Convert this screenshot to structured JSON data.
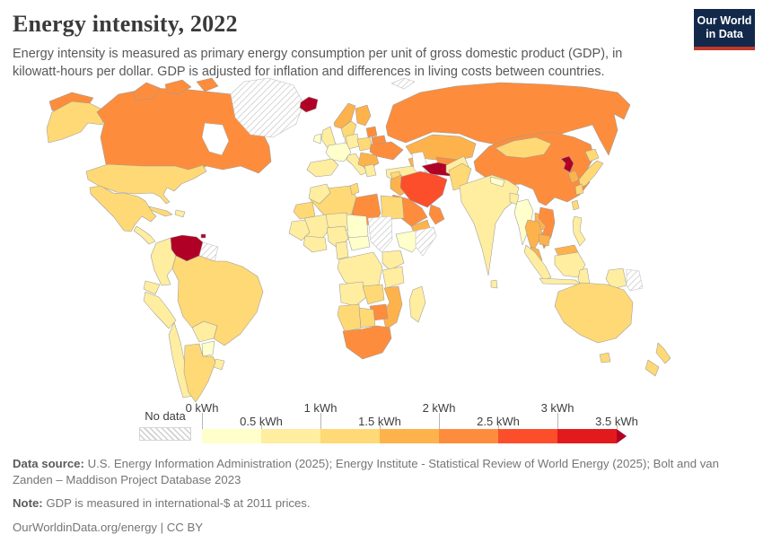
{
  "header": {
    "title": "Energy intensity, 2022",
    "subtitle": "Energy intensity is measured as primary energy consumption per unit of gross domestic product (GDP), in kilowatt-hours per dollar. GDP is adjusted for inflation and differences in living costs between countries.",
    "logo": {
      "line1": "Our World",
      "line2": "in Data",
      "bg_color": "#12294B",
      "accent_color": "#C0392B"
    }
  },
  "legend": {
    "no_data_label": "No data",
    "ticks_top": [
      "0 kWh",
      "1 kWh",
      "2 kWh",
      "3 kWh"
    ],
    "ticks_bottom": [
      "0.5 kWh",
      "1.5 kWh",
      "2.5 kWh",
      "3.5 kWh"
    ]
  },
  "chart_data": {
    "type": "choropleth",
    "title": "Energy intensity",
    "year": 2022,
    "unit": "kilowatt-hours per international-$ of GDP",
    "legend_bins": [
      {
        "label": "0–0.5 kWh",
        "color": "#FFFFCC"
      },
      {
        "label": "0.5–1 kWh",
        "color": "#FFEDA0"
      },
      {
        "label": "1–1.5 kWh",
        "color": "#FED976"
      },
      {
        "label": "1.5–2 kWh",
        "color": "#FEB24C"
      },
      {
        "label": "2–2.5 kWh",
        "color": "#FD8D3C"
      },
      {
        "label": "2.5–3 kWh",
        "color": "#FC4E2A"
      },
      {
        "label": "3–3.5 kWh",
        "color": "#E31A1C"
      },
      {
        "label": "3.5+ kWh",
        "color": "#B10026"
      }
    ],
    "no_data": {
      "label": "No data",
      "fill": "hatched"
    },
    "countries": {
      "united-states": 2,
      "canada": 4,
      "greenland": "no_data",
      "iceland": 7,
      "mexico": 2,
      "cuba": 2,
      "haiti-dominican-republic": 1,
      "trinidad-and-tobago": 7,
      "central-america": 1,
      "venezuela": 7,
      "guyana-suriname": "no_data",
      "colombia": 1,
      "ecuador": 1,
      "peru": 1,
      "brazil": 2,
      "bolivia": 1,
      "paraguay": 0,
      "uruguay": 1,
      "chile": 1,
      "argentina": 2,
      "united-kingdom": 1,
      "ireland": 0,
      "norway": 3,
      "sweden": 2,
      "finland": 3,
      "denmark": 1,
      "estonia": 4,
      "germany": 1,
      "france": 0,
      "spain": 1,
      "italy": 1,
      "poland": 2,
      "belarus": 4,
      "ukraine": 4,
      "balkans": 3,
      "greece": 1,
      "turkey": 1,
      "russia": 4,
      "caucasus": 3,
      "kazakhstan": 3,
      "uzbekistan": 4,
      "turkmenistan": 7,
      "iran": 5,
      "iraq": 3,
      "syria": 2,
      "saudi-arabia": 4,
      "yemen": 3,
      "oman": 4,
      "afghanistan": 1,
      "pakistan": 2,
      "india": 1,
      "sri-lanka": 1,
      "nepal": 0,
      "bangladesh": 1,
      "myanmar": 0,
      "thailand": 3,
      "laos": 3,
      "vietnam": 4,
      "cambodia": 3,
      "malaysia": 3,
      "indonesia": 1,
      "papua-new-guinea": "no_data",
      "philippines": 1,
      "china": 4,
      "mongolia": 2,
      "north-korea": 7,
      "south-korea": 3,
      "japan": 2,
      "taiwan": 2,
      "morocco": 1,
      "algeria": 2,
      "tunisia": 2,
      "libya": 4,
      "egypt": 2,
      "mauritania": 2,
      "mali": 1,
      "niger": 1,
      "chad": 0,
      "sudan": "no_data",
      "ethiopia": 0,
      "somalia": "no_data",
      "west-africa": 1,
      "ghana-ivory-coast": 1,
      "nigeria": 1,
      "cameroon": 1,
      "central-african-republic": 0,
      "dr-congo": 1,
      "kenya": 1,
      "tanzania": 1,
      "angola": 1,
      "zambia": 2,
      "mozambique": 3,
      "zimbabwe": 4,
      "namibia": 2,
      "botswana": 2,
      "south-africa": 4,
      "madagascar": 1,
      "australia": 2,
      "new-zealand": 2,
      "svalbard": "no_data"
    }
  },
  "footer": {
    "source_label": "Data source:",
    "source_text": "U.S. Energy Information Administration (2025); Energy Institute - Statistical Review of World Energy (2025); Bolt and van Zanden – Maddison Project Database 2023",
    "note_label": "Note:",
    "note_text": "GDP is measured in international-$ at 2011 prices.",
    "license": "OurWorldinData.org/energy | CC BY"
  }
}
